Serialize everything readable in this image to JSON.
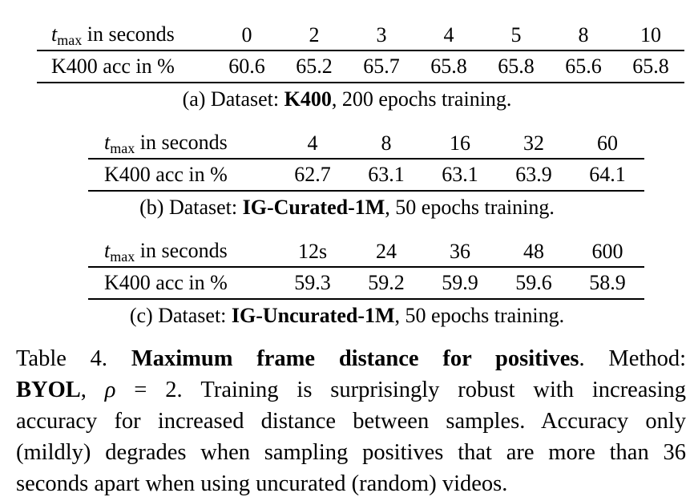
{
  "tables": [
    {
      "header_label_var": "t",
      "header_label_sub": "max",
      "header_label_rest": " in seconds",
      "row_label": "K400 acc in %",
      "columns": [
        "0",
        "2",
        "3",
        "4",
        "5",
        "8",
        "10"
      ],
      "values": [
        "60.6",
        "65.2",
        "65.7",
        "65.8",
        "65.8",
        "65.6",
        "65.8"
      ],
      "caption_prefix": "(a)  Dataset: ",
      "caption_bold": "K400",
      "caption_suffix": ", 200 epochs training."
    },
    {
      "header_label_var": "t",
      "header_label_sub": "max",
      "header_label_rest": " in seconds",
      "row_label": "K400 acc in %",
      "columns": [
        "4",
        "8",
        "16",
        "32",
        "60"
      ],
      "values": [
        "62.7",
        "63.1",
        "63.1",
        "63.9",
        "64.1"
      ],
      "caption_prefix": "(b)  Dataset: ",
      "caption_bold": "IG-Curated-1M",
      "caption_suffix": ", 50 epochs training."
    },
    {
      "header_label_var": "t",
      "header_label_sub": "max",
      "header_label_rest": " in seconds",
      "row_label": "K400 acc in %",
      "columns": [
        "12s",
        "24",
        "36",
        "48",
        "600"
      ],
      "values": [
        "59.3",
        "59.2",
        "59.9",
        "59.6",
        "58.9"
      ],
      "caption_prefix": "(c)  Dataset: ",
      "caption_bold": "IG-Uncurated-1M",
      "caption_suffix": ", 50 epochs training."
    }
  ],
  "caption": {
    "table_num": "Table 4. ",
    "title": "Maximum frame distance for positives",
    "title_end": ".",
    "method_label": "Method:",
    "method_bold": "BYOL",
    "rho_sep": ", ",
    "rho_var": "ρ",
    "rho_eq": " = 2.",
    "line1_tail": "Training is surprisingly robust with increasing",
    "line2": "accuracy for increased distance between samples. Accuracy only",
    "line3": "(mildly) degrades when sampling positives that are more than  36",
    "line4": "seconds apart when using uncurated (random) videos."
  }
}
